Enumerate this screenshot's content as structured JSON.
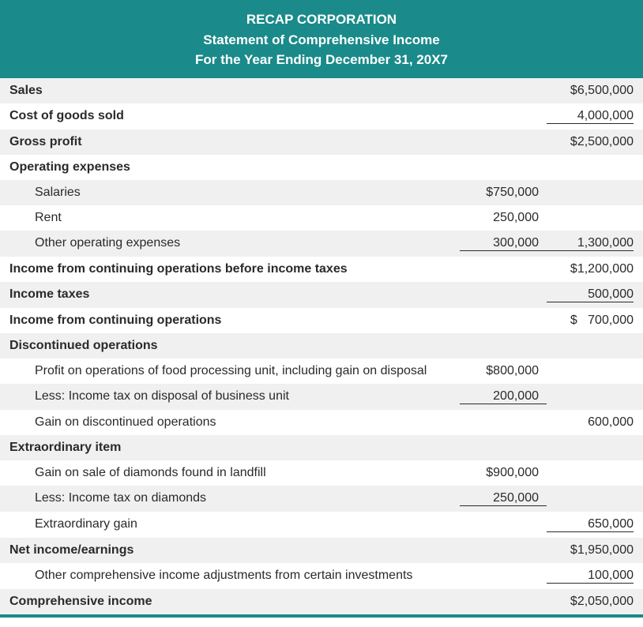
{
  "header": {
    "company": "RECAP CORPORATION",
    "title": "Statement of Comprehensive Income",
    "period": "For the Year Ending December 31, 20X7"
  },
  "colors": {
    "header_bg": "#1a8a8a",
    "header_text": "#ffffff",
    "shaded_row": "#f0f0f0",
    "text": "#2a2a2a",
    "border": "#1a8a8a"
  },
  "rows": {
    "sales": {
      "label": "Sales",
      "col2": "$6,500,000"
    },
    "cogs": {
      "label": "Cost of goods sold",
      "col2": "4,000,000"
    },
    "gross_profit": {
      "label": "Gross profit",
      "col2": "$2,500,000"
    },
    "opex_header": {
      "label": "Operating expenses"
    },
    "salaries": {
      "label": "Salaries",
      "col1": "$750,000"
    },
    "rent": {
      "label": "Rent",
      "col1": "250,000"
    },
    "other_opex": {
      "label": "Other operating expenses",
      "col1": "300,000",
      "col2": "1,300,000"
    },
    "income_before_tax": {
      "label": "Income from continuing operations before income taxes",
      "col2": "$1,200,000"
    },
    "income_taxes": {
      "label": "Income taxes",
      "col2": "500,000"
    },
    "income_cont_ops": {
      "label": "Income from continuing operations",
      "col2": "$   700,000"
    },
    "discops_header": {
      "label": "Discontinued operations"
    },
    "discops_profit": {
      "label": "Profit on operations of food processing unit, including gain on disposal",
      "col1": "$800,000"
    },
    "discops_tax": {
      "label": "Less:  Income tax on disposal of business unit",
      "col1": "200,000"
    },
    "discops_gain": {
      "label": "Gain on discontinued operations",
      "col2": "600,000"
    },
    "extra_header": {
      "label": "Extraordinary item"
    },
    "extra_gain_sale": {
      "label": "Gain on sale of diamonds found in landfill",
      "col1": "$900,000"
    },
    "extra_tax": {
      "label": "Less:  Income tax on diamonds",
      "col1": "250,000"
    },
    "extra_gain": {
      "label": "Extraordinary gain",
      "col2": "650,000"
    },
    "net_income": {
      "label": "Net income/earnings",
      "col2": "$1,950,000"
    },
    "oci": {
      "label": "Other comprehensive income adjustments from certain investments",
      "col2": "100,000"
    },
    "comp_income": {
      "label": "Comprehensive income",
      "col2": "$2,050,000"
    }
  }
}
